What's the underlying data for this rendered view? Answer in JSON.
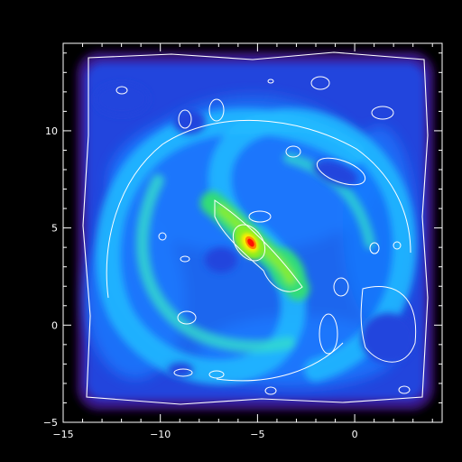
{
  "figure": {
    "background": "#000000",
    "frame_color": "#ffffff",
    "contour_color": "#ffffff"
  },
  "x_axis": {
    "range": [
      -15,
      4.5
    ],
    "major_ticks": [
      -15,
      -10,
      -5,
      0
    ],
    "labels": [
      "−15",
      "−10",
      "−5",
      "0"
    ]
  },
  "y_axis": {
    "range": [
      -5,
      14.5
    ],
    "major_ticks": [
      -5,
      0,
      5,
      10
    ],
    "labels": [
      "−5",
      "0",
      "5",
      "10"
    ]
  },
  "image": {
    "colormap": [
      "#2a0a55",
      "#3a1a9a",
      "#2244dd",
      "#1a7aff",
      "#22bbff",
      "#33ddcc",
      "#33dd77",
      "#88ee22",
      "#ffee00",
      "#ff8800",
      "#ff1100"
    ],
    "core_position": [
      -5.2,
      4.5
    ]
  }
}
